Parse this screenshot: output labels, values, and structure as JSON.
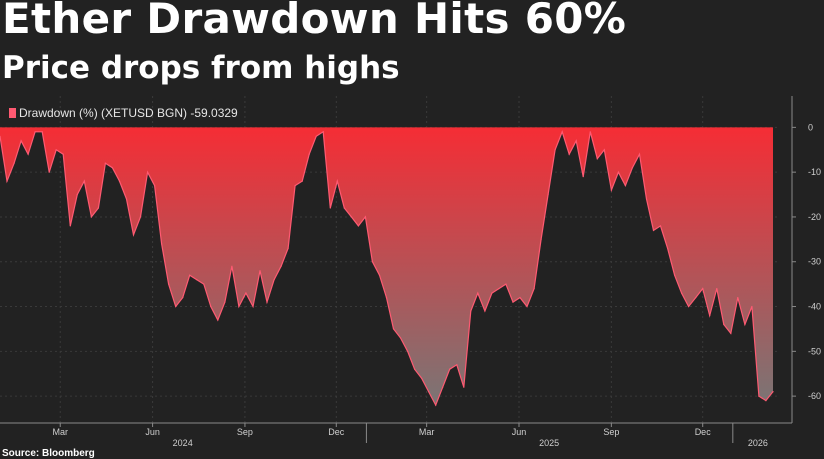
{
  "headline": "Ether Drawdown Hits 60%",
  "subheadline": "Price drops from highs",
  "source": "Source: Bloomberg",
  "colors": {
    "background": "#222222",
    "fill_top": "#f52d35",
    "fill_bottom": "#7a7575",
    "line": "#ff5a72",
    "legend_swatch": "#ff5a72"
  },
  "chart_data": {
    "type": "area",
    "legend": "Drawdown (%) (XETUSD BGN) -59.0329",
    "series": [
      {
        "name": "Drawdown (%) (XETUSD BGN)",
        "last_value": -59.0329,
        "x": [
          "2024-01-01",
          "2024-01-08",
          "2024-01-15",
          "2024-01-22",
          "2024-01-29",
          "2024-02-05",
          "2024-02-12",
          "2024-02-19",
          "2024-02-26",
          "2024-03-04",
          "2024-03-11",
          "2024-03-18",
          "2024-03-25",
          "2024-04-01",
          "2024-04-08",
          "2024-04-15",
          "2024-04-22",
          "2024-04-29",
          "2024-05-06",
          "2024-05-13",
          "2024-05-20",
          "2024-05-27",
          "2024-06-03",
          "2024-06-10",
          "2024-06-17",
          "2024-06-24",
          "2024-07-01",
          "2024-07-08",
          "2024-07-15",
          "2024-07-22",
          "2024-07-29",
          "2024-08-05",
          "2024-08-12",
          "2024-08-19",
          "2024-08-26",
          "2024-09-02",
          "2024-09-09",
          "2024-09-16",
          "2024-09-23",
          "2024-09-30",
          "2024-10-07",
          "2024-10-14",
          "2024-10-21",
          "2024-10-28",
          "2024-11-04",
          "2024-11-11",
          "2024-11-18",
          "2024-11-25",
          "2024-12-02",
          "2024-12-09",
          "2024-12-16",
          "2024-12-23",
          "2024-12-30",
          "2025-01-06",
          "2025-01-13",
          "2025-01-20",
          "2025-01-27",
          "2025-02-03",
          "2025-02-10",
          "2025-02-17",
          "2025-02-24",
          "2025-03-03",
          "2025-03-10",
          "2025-03-17",
          "2025-03-24",
          "2025-03-31",
          "2025-04-07",
          "2025-04-14",
          "2025-04-21",
          "2025-04-28",
          "2025-05-05",
          "2025-05-12",
          "2025-05-19",
          "2025-05-26",
          "2025-06-02",
          "2025-06-09",
          "2025-06-16",
          "2025-06-23",
          "2025-06-30",
          "2025-07-07",
          "2025-07-14",
          "2025-07-21",
          "2025-07-28",
          "2025-08-04",
          "2025-08-11",
          "2025-08-18",
          "2025-08-25",
          "2025-09-01",
          "2025-09-08",
          "2025-09-15",
          "2025-09-22",
          "2025-09-29",
          "2025-10-06",
          "2025-10-13",
          "2025-10-20",
          "2025-10-27",
          "2025-11-03",
          "2025-11-10",
          "2025-11-17",
          "2025-11-24",
          "2025-12-01",
          "2025-12-08",
          "2025-12-15",
          "2025-12-22",
          "2025-12-29",
          "2026-01-05",
          "2026-01-12",
          "2026-01-19",
          "2026-01-26",
          "2026-02-02",
          "2026-02-09"
        ],
        "values": [
          -2,
          -12,
          -8,
          -3,
          -6,
          -1,
          -1,
          -10,
          -5,
          -6,
          -22,
          -15,
          -12,
          -20,
          -18,
          -8,
          -9,
          -12,
          -16,
          -24,
          -20,
          -10,
          -13,
          -26,
          -35,
          -40,
          -38,
          -33,
          -34,
          -35,
          -40,
          -43,
          -39,
          -31,
          -40,
          -37,
          -40,
          -32,
          -39,
          -34,
          -31,
          -27,
          -13,
          -12,
          -6,
          -2,
          -1,
          -18,
          -12,
          -18,
          -20,
          -22,
          -20,
          -30,
          -33,
          -38,
          -45,
          -47,
          -50,
          -54,
          -56,
          -59,
          -62,
          -58,
          -54,
          -53,
          -58,
          -41,
          -37,
          -41,
          -37,
          -36,
          -35,
          -39,
          -38,
          -40,
          -36,
          -25,
          -15,
          -5,
          -1,
          -6,
          -3,
          -11,
          -1,
          -7,
          -5,
          -14,
          -10,
          -13,
          -9,
          -6,
          -16,
          -23,
          -22,
          -27,
          -33,
          -37,
          -40,
          -38,
          -36,
          -42,
          -36,
          -44,
          -46,
          -38,
          -44,
          -40,
          -60,
          -61,
          -59
        ]
      }
    ],
    "xaxis": {
      "ticks": [
        {
          "label": "Mar",
          "date": "2024-03-01"
        },
        {
          "label": "Jun",
          "date": "2024-06-01"
        },
        {
          "label": "Sep",
          "date": "2024-09-01"
        },
        {
          "label": "Dec",
          "date": "2024-12-01"
        },
        {
          "label": "Mar",
          "date": "2025-03-01"
        },
        {
          "label": "Jun",
          "date": "2025-06-01"
        },
        {
          "label": "Sep",
          "date": "2025-09-01"
        },
        {
          "label": "Dec",
          "date": "2025-12-01"
        }
      ],
      "years": [
        {
          "label": "2024",
          "date": "2024-07-01"
        },
        {
          "label": "2025",
          "date": "2025-07-01"
        },
        {
          "label": "2026",
          "date": "2026-01-25"
        }
      ],
      "range": [
        "2024-01-01",
        "2026-02-16"
      ]
    },
    "yaxis": {
      "ticks": [
        "0",
        "-10",
        "-20",
        "-30",
        "-40",
        "-50",
        "-60"
      ],
      "tick_values": [
        0,
        -10,
        -20,
        -30,
        -40,
        -50,
        -60
      ],
      "range": [
        -66,
        7
      ]
    },
    "grid": true,
    "legend_placement": "top-left"
  }
}
